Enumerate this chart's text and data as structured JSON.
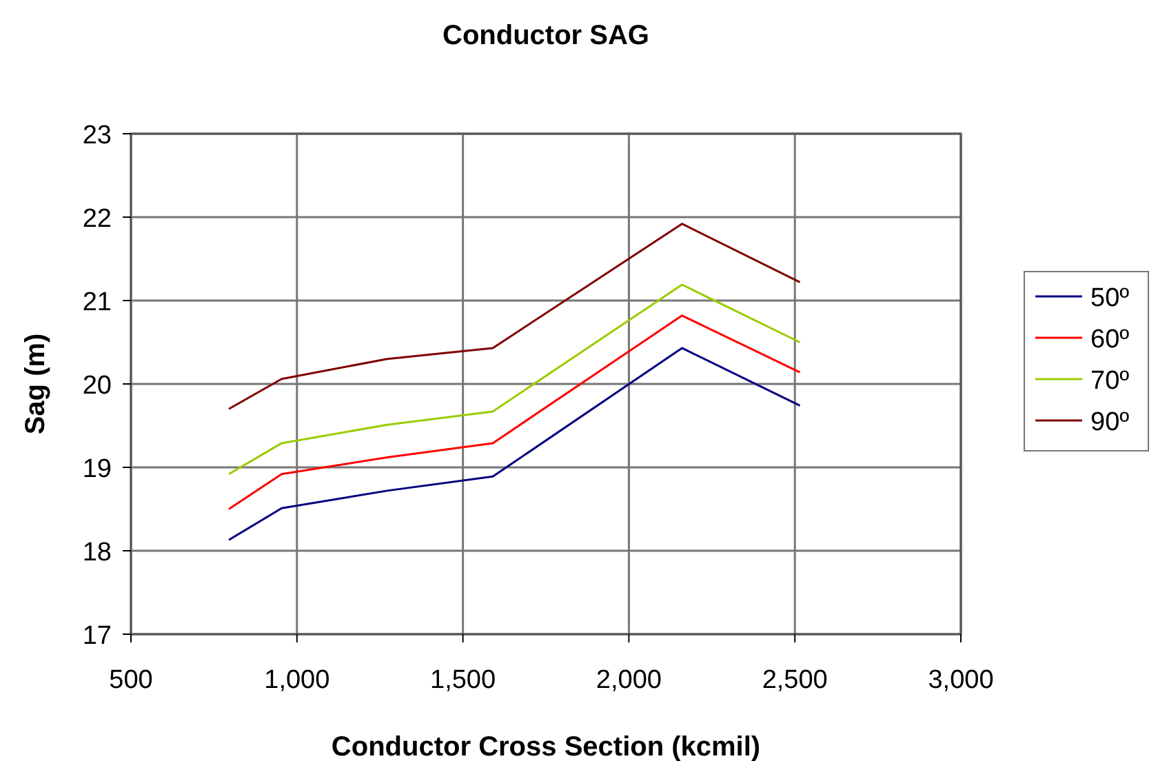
{
  "chart_data": {
    "type": "line",
    "title": "Conductor SAG",
    "xlabel": "Conductor Cross Section (kcmil)",
    "ylabel": "Sag (m)",
    "x": [
      795,
      954,
      1272,
      1590,
      2160,
      2515
    ],
    "series": [
      {
        "name": "50º",
        "color": "#000080",
        "values": [
          18.13,
          18.51,
          18.72,
          18.89,
          20.43,
          19.74
        ]
      },
      {
        "name": "60º",
        "color": "#ff0000",
        "values": [
          18.5,
          18.92,
          19.12,
          19.29,
          20.82,
          20.14
        ]
      },
      {
        "name": "70º",
        "color": "#99cc00",
        "values": [
          18.92,
          19.29,
          19.51,
          19.67,
          21.19,
          20.5
        ]
      },
      {
        "name": "90º",
        "color": "#800000",
        "values": [
          19.7,
          20.06,
          20.3,
          20.43,
          21.92,
          21.22
        ]
      }
    ],
    "xlim": [
      500,
      3000
    ],
    "xticks": [
      500,
      {
        "value": 1000,
        "label": "1,000"
      },
      {
        "value": 1500,
        "label": "1,500"
      },
      {
        "value": 2000,
        "label": "2,000"
      },
      {
        "value": 2500,
        "label": "2,500"
      },
      {
        "value": 3000,
        "label": "3,000"
      }
    ],
    "ylim": [
      17,
      23
    ],
    "yticks": [
      17,
      18,
      19,
      20,
      21,
      22,
      23
    ],
    "grid": true,
    "legend": "right",
    "marker": "none",
    "line_style": "solid"
  }
}
